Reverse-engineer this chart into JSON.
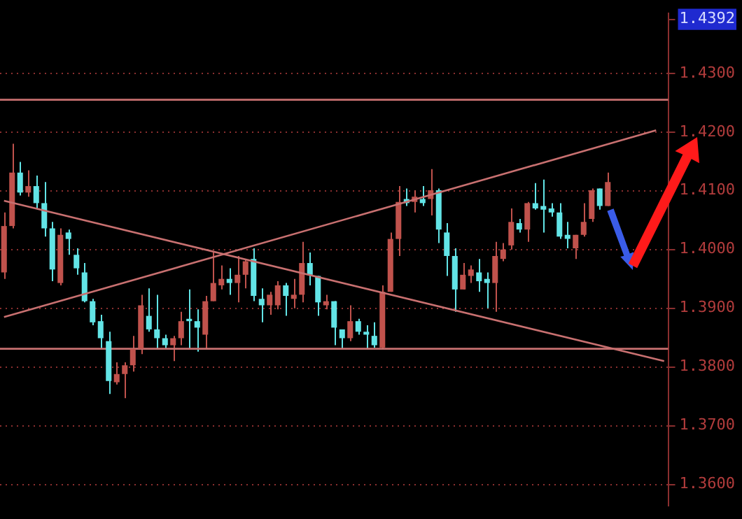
{
  "chart_data": {
    "type": "candlestick",
    "categories": [
      null,
      null,
      null,
      null,
      null,
      null,
      null,
      null,
      null,
      null,
      null,
      null,
      null,
      null,
      null,
      null,
      null,
      null,
      null,
      null,
      null,
      null,
      null,
      null,
      null,
      null,
      null,
      null,
      null,
      null,
      null,
      null,
      null,
      null,
      null,
      null,
      null,
      null,
      null,
      null,
      null,
      null,
      null,
      null,
      null,
      null,
      null,
      null,
      null,
      null,
      null,
      null,
      null,
      null,
      null,
      null,
      null,
      null,
      null,
      null,
      null,
      null,
      null,
      null,
      null,
      null,
      null,
      null,
      null,
      null,
      null,
      null,
      null,
      null,
      null,
      null,
      null,
      null,
      null,
      null,
      null,
      null,
      null
    ],
    "series": [
      {
        "type": "line",
        "color": "#c87070",
        "values": [
          1.3885,
          null,
          null,
          null,
          null,
          null,
          null,
          null,
          null,
          null,
          null,
          null,
          null,
          null,
          null,
          null,
          null,
          null,
          null,
          null,
          null,
          null,
          null,
          null,
          null,
          null,
          null,
          null,
          null,
          null,
          null,
          null,
          null,
          null,
          null,
          null,
          null,
          null,
          null,
          null,
          null,
          null,
          null,
          null,
          null,
          null,
          null,
          null,
          null,
          null,
          null,
          null,
          null,
          null,
          null,
          null,
          null,
          null,
          null,
          null,
          null,
          null,
          null,
          null,
          null,
          null,
          null,
          null,
          null,
          null,
          null,
          null,
          null,
          null,
          null,
          null,
          null,
          null,
          null,
          null,
          null,
          1.4203,
          null
        ]
      },
      {
        "type": "line",
        "color": "#c87070",
        "values": [
          1.4083,
          null,
          null,
          null,
          null,
          null,
          null,
          null,
          null,
          null,
          null,
          null,
          null,
          null,
          null,
          null,
          null,
          null,
          null,
          null,
          null,
          null,
          null,
          null,
          null,
          null,
          null,
          null,
          null,
          null,
          null,
          null,
          null,
          null,
          null,
          null,
          null,
          null,
          null,
          null,
          null,
          null,
          null,
          null,
          null,
          null,
          null,
          null,
          null,
          null,
          null,
          null,
          null,
          null,
          null,
          null,
          null,
          null,
          null,
          null,
          null,
          null,
          null,
          null,
          null,
          null,
          null,
          null,
          null,
          null,
          null,
          null,
          null,
          null,
          null,
          null,
          null,
          null,
          null,
          null,
          null,
          null,
          1.381
        ]
      },
      {
        "ohlc": [
          [
            1.3961,
            1.4063,
            1.395,
            1.404
          ],
          [
            1.404,
            1.418,
            1.4036,
            1.4131
          ],
          [
            1.4131,
            1.4149,
            1.4092,
            1.4097
          ],
          [
            1.4097,
            1.4135,
            1.409,
            1.4108
          ],
          [
            1.4108,
            1.4126,
            1.407,
            1.4079
          ],
          [
            1.4079,
            1.4115,
            1.4022,
            1.4036
          ],
          [
            1.4036,
            1.4047,
            1.3946,
            1.3966
          ],
          [
            1.3943,
            1.4036,
            1.3939,
            1.4025
          ],
          [
            1.4029,
            1.4034,
            1.3991,
            1.4018
          ],
          [
            1.3991,
            1.4002,
            1.3957,
            1.3968
          ],
          [
            1.3961,
            1.3977,
            1.391,
            1.3912
          ],
          [
            1.3912,
            1.3916,
            1.3871,
            1.3876
          ],
          [
            1.3878,
            1.3889,
            1.3831,
            1.3849
          ],
          [
            1.3844,
            1.386,
            1.3754,
            1.3776
          ],
          [
            1.3774,
            1.3808,
            1.377,
            1.3788
          ],
          [
            1.3788,
            1.3808,
            1.3747,
            1.3803
          ],
          [
            1.3803,
            1.3853,
            1.3792,
            1.3831
          ],
          [
            1.3831,
            1.3923,
            1.3822,
            1.3905
          ],
          [
            1.3887,
            1.3934,
            1.386,
            1.3864
          ],
          [
            1.3864,
            1.3923,
            1.3831,
            1.3849
          ],
          [
            1.3849,
            1.3855,
            1.3831,
            1.3837
          ],
          [
            1.3837,
            1.3853,
            1.381,
            1.3849
          ],
          [
            1.3849,
            1.3894,
            1.3837,
            1.3878
          ],
          [
            1.3882,
            1.3932,
            1.3831,
            1.3878
          ],
          [
            1.3878,
            1.3898,
            1.3826,
            1.3867
          ],
          [
            1.3855,
            1.3921,
            1.3831,
            1.3912
          ],
          [
            1.3912,
            1.3995,
            1.3912,
            1.3943
          ],
          [
            1.3939,
            1.3973,
            1.3932,
            1.395
          ],
          [
            1.395,
            1.3968,
            1.3923,
            1.3943
          ],
          [
            1.3943,
            1.3989,
            1.391,
            1.3957
          ],
          [
            1.3957,
            1.3984,
            1.3934,
            1.398
          ],
          [
            1.3984,
            1.4002,
            1.3912,
            1.3921
          ],
          [
            1.3916,
            1.3934,
            1.3876,
            1.3905
          ],
          [
            1.3905,
            1.3928,
            1.3889,
            1.3923
          ],
          [
            1.3905,
            1.3946,
            1.3898,
            1.3939
          ],
          [
            1.3939,
            1.3943,
            1.3887,
            1.3921
          ],
          [
            1.3916,
            1.395,
            1.39,
            1.3923
          ],
          [
            1.3923,
            1.4013,
            1.391,
            1.3977
          ],
          [
            1.3977,
            1.3995,
            1.3939,
            1.3957
          ],
          [
            1.3955,
            1.3955,
            1.3887,
            1.391
          ],
          [
            1.3905,
            1.3923,
            1.3898,
            1.3912
          ],
          [
            1.3912,
            1.3912,
            1.3837,
            1.3867
          ],
          [
            1.3864,
            1.3864,
            1.3831,
            1.3849
          ],
          [
            1.3849,
            1.3905,
            1.3844,
            1.3878
          ],
          [
            1.3878,
            1.3882,
            1.3855,
            1.386
          ],
          [
            1.386,
            1.3871,
            1.3831,
            1.3855
          ],
          [
            1.3853,
            1.3876,
            1.3833,
            1.3837
          ],
          [
            1.3833,
            1.3939,
            1.3831,
            1.3928
          ],
          [
            1.3928,
            1.4029,
            1.3928,
            1.4018
          ],
          [
            1.4018,
            1.4108,
            1.3989,
            1.4081
          ],
          [
            1.4086,
            1.4104,
            1.4074,
            1.4079
          ],
          [
            1.4081,
            1.4101,
            1.4063,
            1.409
          ],
          [
            1.4086,
            1.4108,
            1.4074,
            1.4079
          ],
          [
            1.4086,
            1.4137,
            1.4058,
            1.4101
          ],
          [
            1.4101,
            1.4104,
            1.4011,
            1.4034
          ],
          [
            1.4029,
            1.4045,
            1.3955,
            1.3989
          ],
          [
            1.3989,
            1.4002,
            1.3894,
            1.3932
          ],
          [
            1.3932,
            1.3977,
            1.3932,
            1.3957
          ],
          [
            1.3955,
            1.3973,
            1.3943,
            1.3966
          ],
          [
            1.3961,
            1.3984,
            1.3928,
            1.3946
          ],
          [
            1.395,
            1.3961,
            1.39,
            1.3943
          ],
          [
            1.3943,
            1.4013,
            1.3894,
            1.3989
          ],
          [
            1.3984,
            1.4011,
            1.398,
            1.4
          ],
          [
            1.4007,
            1.407,
            1.4,
            1.4047
          ],
          [
            1.4045,
            1.4052,
            1.4029,
            1.4034
          ],
          [
            1.4034,
            1.4081,
            1.4013,
            1.4079
          ],
          [
            1.4079,
            1.4113,
            1.4068,
            1.407
          ],
          [
            1.4074,
            1.4119,
            1.4029,
            1.4068
          ],
          [
            1.407,
            1.4079,
            1.4056,
            1.4063
          ],
          [
            1.4063,
            1.4079,
            1.4018,
            1.4022
          ],
          [
            1.4025,
            1.4047,
            1.4002,
            1.4018
          ],
          [
            1.4002,
            1.4025,
            1.3984,
            1.4025
          ],
          [
            1.4025,
            1.4079,
            1.4022,
            1.4047
          ],
          [
            1.4052,
            1.4104,
            1.4047,
            1.4101
          ],
          [
            1.4104,
            1.4104,
            1.4068,
            1.4074
          ],
          [
            1.4074,
            1.4131,
            1.4074,
            1.4115
          ],
          null,
          null,
          null,
          null,
          null,
          null,
          null
        ],
        "colors": [
          "#c0524c",
          "#c0524c",
          "#62e4e6",
          "#c0524c",
          "#62e4e6",
          "#62e4e6",
          "#62e4e6",
          "#c0524c",
          "#62e4e6",
          "#62e4e6",
          "#62e4e6",
          "#62e4e6",
          "#62e4e6",
          "#62e4e6",
          "#c0524c",
          "#c0524c",
          "#c0524c",
          "#c0524c",
          "#62e4e6",
          "#62e4e6",
          "#62e4e6",
          "#c0524c",
          "#c0524c",
          "#62e4e6",
          "#62e4e6",
          "#c0524c",
          "#c0524c",
          "#c0524c",
          "#62e4e6",
          "#c0524c",
          "#c0524c",
          "#62e4e6",
          "#62e4e6",
          "#c0524c",
          "#c0524c",
          "#62e4e6",
          "#c0524c",
          "#c0524c",
          "#62e4e6",
          "#62e4e6",
          "#c0524c",
          "#62e4e6",
          "#62e4e6",
          "#c0524c",
          "#62e4e6",
          "#62e4e6",
          "#62e4e6",
          "#c0524c",
          "#c0524c",
          "#c0524c",
          "#62e4e6",
          "#c0524c",
          "#62e4e6",
          "#c0524c",
          "#62e4e6",
          "#62e4e6",
          "#62e4e6",
          "#c0524c",
          "#c0524c",
          "#62e4e6",
          "#62e4e6",
          "#c0524c",
          "#c0524c",
          "#c0524c",
          "#62e4e6",
          "#c0524c",
          "#62e4e6",
          "#62e4e6",
          "#62e4e6",
          "#62e4e6",
          "#62e4e6",
          "#c0524c",
          "#c0524c",
          "#c0524c",
          "#62e4e6",
          "#c0524c",
          null,
          null,
          null,
          null,
          null,
          null,
          null
        ]
      }
    ],
    "ylim": [
      1.3564,
      1.4402
    ],
    "yticks": [
      {
        "value": 1.36,
        "label": "1.3600"
      },
      {
        "value": 1.37,
        "label": "1.3700"
      },
      {
        "value": 1.38,
        "label": "1.3800"
      },
      {
        "value": 1.39,
        "label": "1.3900"
      },
      {
        "value": 1.4,
        "label": "1.4000"
      },
      {
        "value": 1.41,
        "label": "1.4100"
      },
      {
        "value": 1.42,
        "label": "1.4200"
      },
      {
        "value": 1.43,
        "label": "1.4300"
      },
      {
        "value": 1.4392,
        "label": "1.4392"
      }
    ],
    "ref_lines": [
      {
        "axis": "y",
        "value": 1.4255,
        "color": "#c87070"
      },
      {
        "axis": "y",
        "value": 1.3831,
        "color": "#c87070"
      }
    ],
    "grid": "y",
    "tick_labels": "y"
  }
}
